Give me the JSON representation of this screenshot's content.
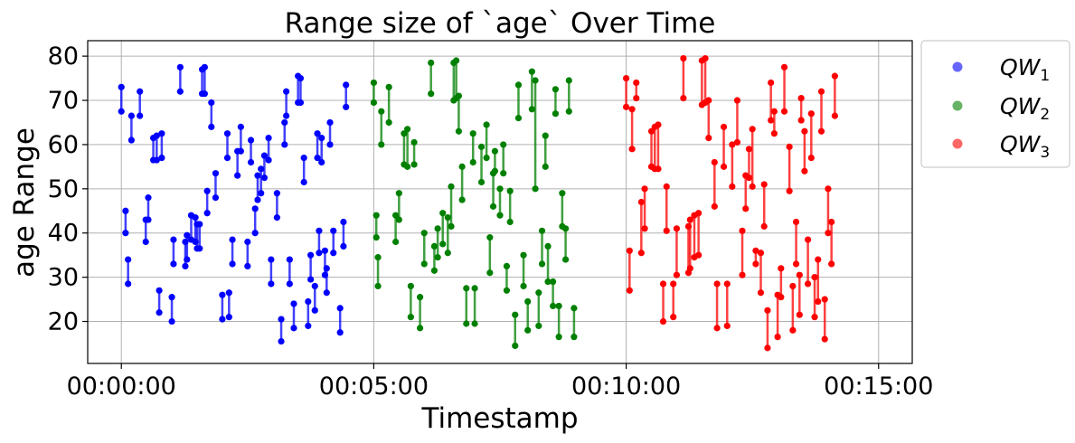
{
  "chart_data": {
    "type": "range",
    "title": "Range size of `age` Over Time",
    "xlabel": "Timestamp",
    "ylabel": "age Range",
    "x_unit": "time hh:mm:ss",
    "xlim": [
      "-00:00:40",
      "00:15:40"
    ],
    "ylim": [
      10.5,
      83.5
    ],
    "x_ticks": [
      "00:00:00",
      "00:05:00",
      "00:10:00",
      "00:15:00"
    ],
    "y_ticks": [
      20,
      30,
      40,
      50,
      60,
      70,
      80
    ],
    "grid": true,
    "legend_position": "outside-upper-right",
    "series": [
      {
        "name": "QW1",
        "label_base": "QW",
        "label_sub": "1",
        "color": "#0000ff",
        "points": [
          [
            "00:00:00",
            67.5,
            73
          ],
          [
            "00:00:05",
            40,
            45
          ],
          [
            "00:00:08",
            28.5,
            34
          ],
          [
            "00:00:12",
            61,
            66.5
          ],
          [
            "00:00:22",
            66.5,
            72
          ],
          [
            "00:00:29",
            38,
            43
          ],
          [
            "00:00:32",
            43,
            48
          ],
          [
            "00:00:38",
            56.5,
            61.5
          ],
          [
            "00:00:42",
            56.5,
            62
          ],
          [
            "00:00:45",
            22,
            27
          ],
          [
            "00:00:48",
            57,
            62.5
          ],
          [
            "00:01:00",
            20,
            25.5
          ],
          [
            "00:01:02",
            33,
            38.5
          ],
          [
            "00:01:10",
            72,
            77.5
          ],
          [
            "00:01:16",
            32.5,
            38
          ],
          [
            "00:01:18",
            34,
            39.5
          ],
          [
            "00:01:23",
            38.5,
            44
          ],
          [
            "00:01:28",
            38,
            43.5
          ],
          [
            "00:01:30",
            36.5,
            42
          ],
          [
            "00:01:33",
            36.5,
            42
          ],
          [
            "00:01:36",
            71.5,
            77
          ],
          [
            "00:01:39",
            71.5,
            77.5
          ],
          [
            "00:01:42",
            44.5,
            49.5
          ],
          [
            "00:01:47",
            64,
            69.5
          ],
          [
            "00:01:52",
            48,
            53.5
          ],
          [
            "00:02:00",
            20.5,
            26
          ],
          [
            "00:02:06",
            57,
            62.5
          ],
          [
            "00:02:08",
            21,
            26.5
          ],
          [
            "00:02:12",
            33,
            38.5
          ],
          [
            "00:02:18",
            53,
            58.5
          ],
          [
            "00:02:22",
            58.5,
            64
          ],
          [
            "00:02:30",
            32.5,
            38
          ],
          [
            "00:02:34",
            56,
            61
          ],
          [
            "00:02:39",
            40,
            45.5
          ],
          [
            "00:02:42",
            47.5,
            53
          ],
          [
            "00:02:46",
            49,
            54.5
          ],
          [
            "00:02:50",
            52.5,
            57.5
          ],
          [
            "00:02:55",
            56.5,
            61.5
          ],
          [
            "00:02:58",
            28.5,
            34
          ],
          [
            "00:03:05",
            43.5,
            49
          ],
          [
            "00:03:10",
            15.5,
            20.5
          ],
          [
            "00:03:14",
            60,
            65
          ],
          [
            "00:03:16",
            66.5,
            72
          ],
          [
            "00:03:20",
            28.5,
            34
          ],
          [
            "00:03:25",
            18.5,
            24
          ],
          [
            "00:03:30",
            69.5,
            75.5
          ],
          [
            "00:03:33",
            69.5,
            75
          ],
          [
            "00:03:37",
            51.5,
            57
          ],
          [
            "00:03:42",
            19,
            24.5
          ],
          [
            "00:03:45",
            29.5,
            35
          ],
          [
            "00:03:50",
            22.5,
            28
          ],
          [
            "00:03:53",
            57,
            62.5
          ],
          [
            "00:03:55",
            35.5,
            40.5
          ],
          [
            "00:03:58",
            56,
            61.5
          ],
          [
            "00:04:02",
            30.5,
            36
          ],
          [
            "00:04:04",
            26.5,
            32
          ],
          [
            "00:04:08",
            60,
            65
          ],
          [
            "00:04:12",
            35.5,
            40.5
          ],
          [
            "00:04:20",
            17.5,
            23
          ],
          [
            "00:04:24",
            37,
            42.5
          ],
          [
            "00:04:27",
            68.5,
            73.5
          ]
        ]
      },
      {
        "name": "QW2",
        "label_base": "QW",
        "label_sub": "2",
        "color": "#008000",
        "points": [
          [
            "00:05:00",
            69.5,
            74
          ],
          [
            "00:05:03",
            39,
            44
          ],
          [
            "00:05:05",
            28,
            34.5
          ],
          [
            "00:05:09",
            60,
            67.5
          ],
          [
            "00:05:18",
            65,
            73
          ],
          [
            "00:05:26",
            38,
            44
          ],
          [
            "00:05:30",
            43,
            49
          ],
          [
            "00:05:36",
            55.5,
            62.5
          ],
          [
            "00:05:40",
            55,
            63.5
          ],
          [
            "00:05:44",
            21,
            28
          ],
          [
            "00:05:48",
            55.5,
            60.5
          ],
          [
            "00:05:55",
            18.5,
            25.5
          ],
          [
            "00:06:00",
            33,
            40
          ],
          [
            "00:06:08",
            71.5,
            78.5
          ],
          [
            "00:06:12",
            31.5,
            37
          ],
          [
            "00:06:16",
            34.5,
            41
          ],
          [
            "00:06:22",
            37.5,
            44.5
          ],
          [
            "00:06:28",
            35.5,
            43.5
          ],
          [
            "00:06:32",
            41.5,
            50.5
          ],
          [
            "00:06:35",
            70,
            78.5
          ],
          [
            "00:06:38",
            70.5,
            79
          ],
          [
            "00:06:41",
            63,
            71
          ],
          [
            "00:06:45",
            47.5,
            55
          ],
          [
            "00:06:50",
            19.5,
            27.5
          ],
          [
            "00:06:58",
            56,
            62.5
          ],
          [
            "00:07:00",
            19.5,
            27.5
          ],
          [
            "00:07:08",
            51.5,
            59.5
          ],
          [
            "00:07:14",
            57,
            64.5
          ],
          [
            "00:07:18",
            31,
            39
          ],
          [
            "00:07:22",
            46,
            53.5
          ],
          [
            "00:07:24",
            54,
            58.5
          ],
          [
            "00:07:30",
            44,
            50
          ],
          [
            "00:07:34",
            53.5,
            60
          ],
          [
            "00:07:38",
            27,
            32.5
          ],
          [
            "00:07:42",
            42.5,
            49.5
          ],
          [
            "00:07:48",
            14.5,
            21.5
          ],
          [
            "00:07:52",
            66,
            73.5
          ],
          [
            "00:07:58",
            28,
            35
          ],
          [
            "00:08:03",
            18,
            24.5
          ],
          [
            "00:08:08",
            68,
            76.5
          ],
          [
            "00:08:12",
            50,
            74.5
          ],
          [
            "00:08:16",
            19,
            26.5
          ],
          [
            "00:08:20",
            33,
            40.5
          ],
          [
            "00:08:24",
            55,
            62
          ],
          [
            "00:08:27",
            29,
            37
          ],
          [
            "00:08:33",
            23.5,
            29
          ],
          [
            "00:08:36",
            67,
            72.5
          ],
          [
            "00:08:40",
            16.5,
            23.5
          ],
          [
            "00:08:44",
            41.5,
            49
          ],
          [
            "00:08:48",
            34,
            41
          ],
          [
            "00:08:52",
            67.5,
            74.5
          ],
          [
            "00:08:58",
            16.5,
            23
          ]
        ]
      },
      {
        "name": "QW3",
        "label_base": "QW",
        "label_sub": "3",
        "color": "#ff0000",
        "points": [
          [
            "00:10:00",
            68.5,
            75
          ],
          [
            "00:10:04",
            27,
            36
          ],
          [
            "00:10:07",
            59,
            68
          ],
          [
            "00:10:12",
            70.5,
            74
          ],
          [
            "00:10:18",
            35.5,
            47
          ],
          [
            "00:10:22",
            41,
            50
          ],
          [
            "00:10:30",
            55,
            63
          ],
          [
            "00:10:34",
            54.5,
            64
          ],
          [
            "00:10:38",
            54.5,
            64.5
          ],
          [
            "00:10:44",
            20,
            28.5
          ],
          [
            "00:10:48",
            40.5,
            50.5
          ],
          [
            "00:10:56",
            21,
            28.5
          ],
          [
            "00:11:00",
            30.5,
            41
          ],
          [
            "00:11:08",
            70.5,
            79.5
          ],
          [
            "00:11:14",
            31,
            41.5
          ],
          [
            "00:11:16",
            32,
            43
          ],
          [
            "00:11:21",
            34.5,
            44
          ],
          [
            "00:11:26",
            35,
            44.5
          ],
          [
            "00:11:30",
            69,
            79
          ],
          [
            "00:11:34",
            69.5,
            79.5
          ],
          [
            "00:11:38",
            61.5,
            70
          ],
          [
            "00:11:45",
            46,
            56
          ],
          [
            "00:11:48",
            18.5,
            28.5
          ],
          [
            "00:11:56",
            55,
            64
          ],
          [
            "00:12:00",
            19,
            28.5
          ],
          [
            "00:12:06",
            50.5,
            60
          ],
          [
            "00:12:12",
            60.5,
            70
          ],
          [
            "00:12:18",
            30.5,
            40.5
          ],
          [
            "00:12:22",
            45.5,
            53
          ],
          [
            "00:12:26",
            52.5,
            59
          ],
          [
            "00:12:30",
            50.5,
            63.5
          ],
          [
            "00:12:34",
            33,
            36
          ],
          [
            "00:12:40",
            26.5,
            35.5
          ],
          [
            "00:12:44",
            41.5,
            51
          ],
          [
            "00:12:48",
            14,
            22.5
          ],
          [
            "00:12:52",
            65.5,
            74
          ],
          [
            "00:12:56",
            62.5,
            67.5
          ],
          [
            "00:13:00",
            16.5,
            26
          ],
          [
            "00:13:04",
            25.5,
            32
          ],
          [
            "00:13:08",
            67.5,
            77.5
          ],
          [
            "00:13:14",
            49.5,
            59.5
          ],
          [
            "00:13:18",
            18,
            28
          ],
          [
            "00:13:22",
            33,
            42.5
          ],
          [
            "00:13:26",
            21.5,
            30.5
          ],
          [
            "00:13:28",
            65.5,
            70.5
          ],
          [
            "00:13:32",
            54,
            63
          ],
          [
            "00:13:36",
            28.5,
            38.5
          ],
          [
            "00:13:40",
            57,
            67
          ],
          [
            "00:13:44",
            21,
            30
          ],
          [
            "00:13:48",
            24.5,
            34
          ],
          [
            "00:13:52",
            63,
            72
          ],
          [
            "00:13:56",
            16,
            25
          ],
          [
            "00:14:00",
            40,
            50
          ],
          [
            "00:14:04",
            33,
            42.5
          ],
          [
            "00:14:08",
            66.5,
            75.5
          ]
        ]
      }
    ]
  }
}
